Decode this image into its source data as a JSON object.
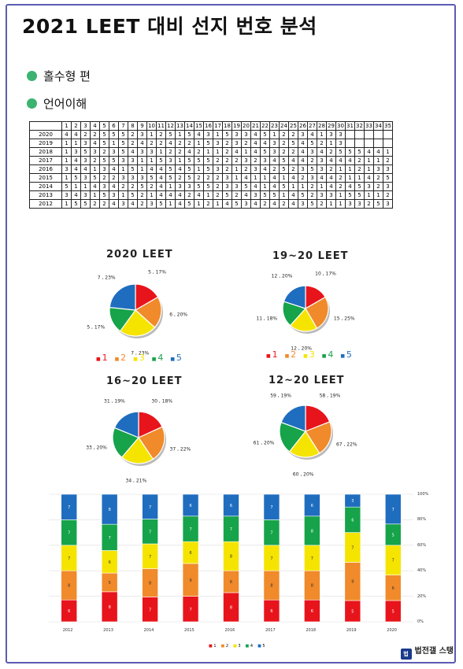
{
  "title": "2021 LEET 대비 선지 번호 분석",
  "sections": {
    "s1": "홀수형 편",
    "s2": "언어이해"
  },
  "colors": {
    "1": "#e8141b",
    "2": "#f08a2a",
    "3": "#f5e400",
    "4": "#16a34a",
    "5": "#1f6dbf"
  },
  "table": {
    "header": [
      "",
      "1",
      "2",
      "3",
      "4",
      "5",
      "6",
      "7",
      "8",
      "9",
      "10",
      "11",
      "12",
      "13",
      "14",
      "15",
      "16",
      "17",
      "18",
      "19",
      "20",
      "21",
      "22",
      "23",
      "24",
      "25",
      "26",
      "27",
      "28",
      "29",
      "30",
      "31",
      "32",
      "33",
      "34",
      "35"
    ],
    "rows": [
      [
        "2020",
        "4",
        "4",
        "2",
        "2",
        "5",
        "5",
        "5",
        "2",
        "3",
        "1",
        "2",
        "5",
        "1",
        "5",
        "4",
        "3",
        "1",
        "5",
        "3",
        "3",
        "4",
        "5",
        "1",
        "2",
        "2",
        "3",
        "4",
        "1",
        "3",
        "3",
        "",
        "",
        "",
        "",
        ""
      ],
      [
        "2019",
        "1",
        "1",
        "3",
        "4",
        "5",
        "1",
        "5",
        "2",
        "4",
        "2",
        "2",
        "4",
        "2",
        "2",
        "1",
        "5",
        "3",
        "2",
        "3",
        "2",
        "4",
        "4",
        "3",
        "2",
        "5",
        "4",
        "5",
        "2",
        "1",
        "3",
        "",
        "",
        "",
        "",
        ""
      ],
      [
        "2018",
        "1",
        "3",
        "5",
        "3",
        "2",
        "3",
        "5",
        "4",
        "3",
        "3",
        "1",
        "2",
        "2",
        "4",
        "2",
        "1",
        "1",
        "2",
        "4",
        "1",
        "4",
        "5",
        "3",
        "2",
        "2",
        "4",
        "3",
        "4",
        "2",
        "5",
        "5",
        "5",
        "4",
        "4",
        "1"
      ],
      [
        "2017",
        "1",
        "4",
        "3",
        "2",
        "5",
        "5",
        "3",
        "3",
        "1",
        "1",
        "5",
        "3",
        "1",
        "5",
        "5",
        "5",
        "2",
        "2",
        "2",
        "3",
        "2",
        "3",
        "4",
        "5",
        "4",
        "4",
        "2",
        "3",
        "4",
        "4",
        "4",
        "2",
        "1",
        "1",
        "2"
      ],
      [
        "2016",
        "3",
        "4",
        "4",
        "1",
        "3",
        "4",
        "1",
        "5",
        "1",
        "4",
        "4",
        "5",
        "4",
        "5",
        "1",
        "5",
        "3",
        "2",
        "1",
        "2",
        "3",
        "4",
        "2",
        "5",
        "2",
        "3",
        "5",
        "3",
        "2",
        "1",
        "1",
        "2",
        "1",
        "3",
        "3"
      ],
      [
        "2015",
        "1",
        "5",
        "3",
        "5",
        "2",
        "2",
        "3",
        "3",
        "3",
        "5",
        "4",
        "5",
        "2",
        "5",
        "2",
        "2",
        "2",
        "3",
        "1",
        "4",
        "1",
        "1",
        "4",
        "1",
        "4",
        "2",
        "3",
        "4",
        "4",
        "2",
        "1",
        "1",
        "4",
        "2",
        "5"
      ],
      [
        "2014",
        "5",
        "1",
        "1",
        "4",
        "3",
        "4",
        "2",
        "2",
        "5",
        "2",
        "4",
        "1",
        "3",
        "3",
        "5",
        "5",
        "2",
        "3",
        "3",
        "5",
        "4",
        "1",
        "4",
        "5",
        "1",
        "1",
        "2",
        "1",
        "4",
        "2",
        "4",
        "5",
        "3",
        "2",
        "3"
      ],
      [
        "2013",
        "3",
        "4",
        "3",
        "1",
        "5",
        "3",
        "1",
        "5",
        "2",
        "1",
        "4",
        "4",
        "4",
        "2",
        "4",
        "1",
        "2",
        "5",
        "2",
        "4",
        "3",
        "5",
        "5",
        "1",
        "4",
        "5",
        "2",
        "3",
        "3",
        "1",
        "5",
        "5",
        "1",
        "1",
        "2"
      ],
      [
        "2012",
        "1",
        "5",
        "5",
        "2",
        "2",
        "4",
        "3",
        "4",
        "2",
        "3",
        "5",
        "1",
        "4",
        "5",
        "1",
        "2",
        "1",
        "4",
        "5",
        "3",
        "4",
        "2",
        "4",
        "2",
        "4",
        "3",
        "5",
        "2",
        "1",
        "1",
        "3",
        "3",
        "2",
        "5",
        "3"
      ]
    ]
  },
  "chart_data": [
    {
      "type": "pie",
      "title": "2020 LEET",
      "categories": [
        "1",
        "2",
        "3",
        "4",
        "5"
      ],
      "slices": [
        {
          "name": "1",
          "count": 5,
          "pct": "17%"
        },
        {
          "name": "2",
          "count": 6,
          "pct": "20%"
        },
        {
          "name": "3",
          "count": 7,
          "pct": "23%"
        },
        {
          "name": "4",
          "count": 5,
          "pct": "17%"
        },
        {
          "name": "5",
          "count": 7,
          "pct": "23%"
        }
      ],
      "labels": [
        "5 , 17%",
        "6 , 20%",
        "7 , 23%",
        "5 , 17%",
        "7 , 23%"
      ]
    },
    {
      "type": "pie",
      "title": "19~20 LEET",
      "categories": [
        "1",
        "2",
        "3",
        "4",
        "5"
      ],
      "slices": [
        {
          "name": "1",
          "count": 10,
          "pct": "17%"
        },
        {
          "name": "2",
          "count": 15,
          "pct": "25%"
        },
        {
          "name": "3",
          "count": 12,
          "pct": "20%"
        },
        {
          "name": "4",
          "count": 11,
          "pct": "18%"
        },
        {
          "name": "5",
          "count": 12,
          "pct": "20%"
        }
      ],
      "labels": [
        "10 , 17%",
        "15 , 25%",
        "12 , 20%",
        "11 , 18%",
        "12 , 20%"
      ]
    },
    {
      "type": "pie",
      "title": "16~20 LEET",
      "categories": [
        "1",
        "2",
        "3",
        "4",
        "5"
      ],
      "slices": [
        {
          "name": "1",
          "count": 30,
          "pct": "18%"
        },
        {
          "name": "2",
          "count": 37,
          "pct": "22%"
        },
        {
          "name": "3",
          "count": 34,
          "pct": "21%"
        },
        {
          "name": "4",
          "count": 33,
          "pct": "20%"
        },
        {
          "name": "5",
          "count": 31,
          "pct": "19%"
        }
      ],
      "labels": [
        "30 , 18%",
        "37 , 22%",
        "34 , 21%",
        "33 , 20%",
        "31 , 19%"
      ]
    },
    {
      "type": "pie",
      "title": "12~20 LEET",
      "categories": [
        "1",
        "2",
        "3",
        "4",
        "5"
      ],
      "slices": [
        {
          "name": "1",
          "count": 58,
          "pct": "19%"
        },
        {
          "name": "2",
          "count": 67,
          "pct": "22%"
        },
        {
          "name": "3",
          "count": 60,
          "pct": "20%"
        },
        {
          "name": "4",
          "count": 61,
          "pct": "20%"
        },
        {
          "name": "5",
          "count": 59,
          "pct": "19%"
        }
      ],
      "labels": [
        "58 , 19%",
        "67 , 22%",
        "60 , 20%",
        "61 , 20%",
        "59 , 19%"
      ]
    },
    {
      "type": "bar",
      "stacked": "percent",
      "title": "",
      "categories": [
        "2012",
        "2013",
        "2014",
        "2015",
        "2016",
        "2017",
        "2018",
        "2019",
        "2020"
      ],
      "series": [
        {
          "name": "1",
          "values": [
            6,
            8,
            7,
            7,
            8,
            6,
            6,
            5,
            5
          ]
        },
        {
          "name": "2",
          "values": [
            8,
            5,
            8,
            9,
            6,
            8,
            8,
            9,
            6
          ]
        },
        {
          "name": "3",
          "values": [
            7,
            6,
            7,
            6,
            8,
            7,
            7,
            7,
            7
          ]
        },
        {
          "name": "4",
          "values": [
            7,
            7,
            7,
            7,
            7,
            7,
            8,
            6,
            5
          ]
        },
        {
          "name": "5",
          "values": [
            7,
            8,
            7,
            6,
            6,
            7,
            6,
            3,
            7
          ]
        }
      ],
      "ylim": [
        0,
        100
      ],
      "yticks": [
        "0%",
        "20%",
        "40%",
        "60%",
        "80%",
        "100%"
      ],
      "legend": "bottom-center"
    }
  ],
  "legend_labels": [
    "1",
    "2",
    "3",
    "4",
    "5"
  ],
  "brand": {
    "logo": "법",
    "name": "법전갤 스탱"
  }
}
